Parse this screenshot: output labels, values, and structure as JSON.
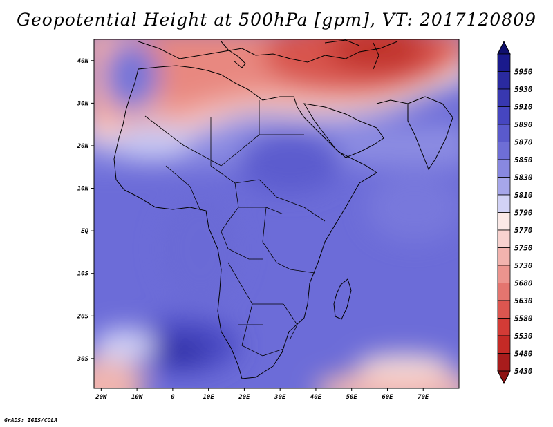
{
  "title": "Geopotential Height at 500hPa [gpm], VT: 2017120809",
  "credit": "GrADS: IGES/COLA",
  "map": {
    "lon_range": [
      -22,
      80
    ],
    "lat_range": [
      -37,
      45
    ],
    "lat_ticks": [
      {
        "value": 40,
        "label": "40N"
      },
      {
        "value": 30,
        "label": "30N"
      },
      {
        "value": 20,
        "label": "20N"
      },
      {
        "value": 10,
        "label": "10N"
      },
      {
        "value": 0,
        "label": "EQ"
      },
      {
        "value": -10,
        "label": "10S"
      },
      {
        "value": -20,
        "label": "20S"
      },
      {
        "value": -30,
        "label": "30S"
      }
    ],
    "lon_ticks": [
      {
        "value": -20,
        "label": "20W"
      },
      {
        "value": -10,
        "label": "10W"
      },
      {
        "value": 0,
        "label": "0"
      },
      {
        "value": 10,
        "label": "10E"
      },
      {
        "value": 20,
        "label": "20E"
      },
      {
        "value": 30,
        "label": "30E"
      },
      {
        "value": 40,
        "label": "40E"
      },
      {
        "value": 50,
        "label": "50E"
      },
      {
        "value": 60,
        "label": "60E"
      },
      {
        "value": 70,
        "label": "70E"
      }
    ]
  },
  "colorbar": {
    "levels": [
      {
        "label": "5950",
        "color": "#1a1a8c"
      },
      {
        "label": "5930",
        "color": "#2a2aa0"
      },
      {
        "label": "5910",
        "color": "#3838b0"
      },
      {
        "label": "5890",
        "color": "#4646c0"
      },
      {
        "label": "5870",
        "color": "#5a5acc"
      },
      {
        "label": "5850",
        "color": "#6e6ed6"
      },
      {
        "label": "5830",
        "color": "#8888e0"
      },
      {
        "label": "5810",
        "color": "#a6a6ea"
      },
      {
        "label": "5790",
        "color": "#d2d2f6"
      },
      {
        "label": "5770",
        "color": "#fbe9e7"
      },
      {
        "label": "5750",
        "color": "#f8d2cf"
      },
      {
        "label": "5730",
        "color": "#f2b3ae"
      },
      {
        "label": "5680",
        "color": "#ec948e"
      },
      {
        "label": "5630",
        "color": "#e4756f"
      },
      {
        "label": "5580",
        "color": "#dc5650"
      },
      {
        "label": "5530",
        "color": "#d33b36"
      },
      {
        "label": "5480",
        "color": "#c42a26"
      },
      {
        "label": "5430",
        "color": "#a81c1c"
      }
    ],
    "top_arrow_color": "#10106e",
    "bottom_arrow_color": "#8e1212"
  }
}
